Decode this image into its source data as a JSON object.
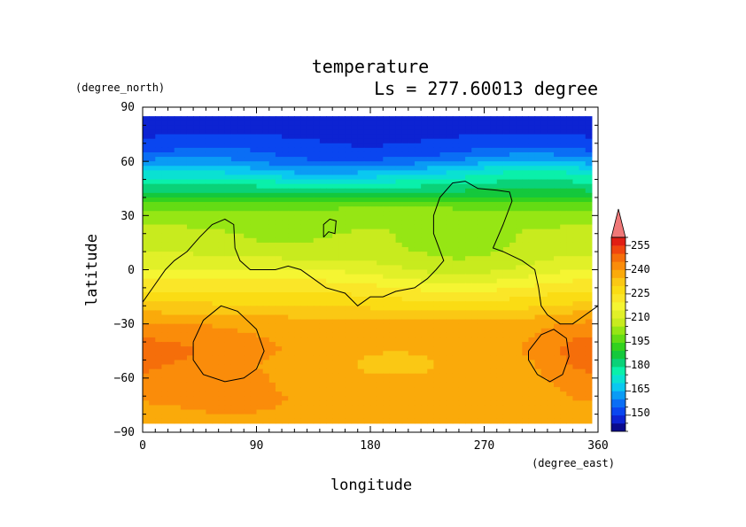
{
  "chart_data": {
    "type": "heatmap",
    "title": "temperature",
    "subtitle": "Ls = 277.60013 degree",
    "xlabel": "longitude",
    "ylabel": "latitude",
    "x_units": "(degree_east)",
    "y_units": "(degree_north)",
    "xlim": [
      0,
      360
    ],
    "ylim": [
      -90,
      90
    ],
    "x_ticks": [
      "0",
      "90",
      "180",
      "270",
      "360"
    ],
    "y_ticks": [
      "90",
      "60",
      "30",
      "0",
      "−30",
      "−60",
      "−90"
    ],
    "colorbar": {
      "levels": [
        140,
        145,
        150,
        155,
        160,
        165,
        170,
        175,
        180,
        185,
        190,
        195,
        200,
        205,
        210,
        215,
        220,
        225,
        230,
        235,
        240,
        245,
        250,
        255,
        260
      ],
      "colors": [
        "#0a0a8c",
        "#0d23d2",
        "#0a46f0",
        "#0a6ef5",
        "#0a9bf5",
        "#0ac8f0",
        "#0ae1d2",
        "#0af0aa",
        "#0ad278",
        "#14c83c",
        "#32d21e",
        "#64dc14",
        "#96e614",
        "#c8eb1e",
        "#e1f028",
        "#f5f532",
        "#fae628",
        "#fadc14",
        "#fac814",
        "#faaa0a",
        "#fa8c0a",
        "#f56e0a",
        "#f0460f",
        "#e11e14"
      ],
      "labels": [
        "255",
        "240",
        "225",
        "210",
        "195",
        "180",
        "165",
        "150"
      ],
      "over_color": "#f07878"
    },
    "profile_lat": [
      85,
      75,
      65,
      60,
      55,
      50,
      45,
      40,
      35,
      30,
      25,
      20,
      15,
      10,
      5,
      0,
      -5,
      -10,
      -15,
      -20,
      -25,
      -30,
      -35,
      -40,
      -45,
      -50,
      -55,
      -60,
      -65,
      -70,
      -75,
      -80,
      -85
    ],
    "profile_temp": [
      147,
      149,
      154,
      160,
      168,
      175,
      182,
      190,
      197,
      202,
      205,
      207,
      208,
      210,
      213,
      216,
      220,
      224,
      227,
      230,
      234,
      237,
      238,
      239,
      239,
      238,
      237,
      237,
      236,
      236,
      236,
      236,
      236
    ],
    "anomalies": [
      {
        "lon": 40,
        "lat": -50,
        "dlon": 55,
        "dlat": 22,
        "dT": 6
      },
      {
        "lon": 80,
        "lat": -72,
        "dlon": 60,
        "dlat": 12,
        "dT": 5
      },
      {
        "lon": 345,
        "lat": -50,
        "dlon": 35,
        "dlat": 25,
        "dT": 6
      },
      {
        "lon": 250,
        "lat": 0,
        "dlon": 70,
        "dlat": 20,
        "dT": -8
      },
      {
        "lon": 200,
        "lat": -48,
        "dlon": 55,
        "dlat": 12,
        "dT": -4
      },
      {
        "lon": 110,
        "lat": 15,
        "dlon": 60,
        "dlat": 15,
        "dT": -3
      },
      {
        "lon": 120,
        "lat": 55,
        "dlon": 60,
        "dlat": 8,
        "dT": -5
      },
      {
        "lon": 315,
        "lat": 55,
        "dlon": 45,
        "dlat": 10,
        "dT": 5
      },
      {
        "lon": 200,
        "lat": 35,
        "dlon": 60,
        "dlat": 8,
        "dT": 4
      }
    ],
    "contours": [
      [
        [
          0,
          -18
        ],
        [
          8,
          -10
        ],
        [
          18,
          0
        ],
        [
          25,
          5
        ],
        [
          35,
          10
        ],
        [
          45,
          18
        ],
        [
          55,
          25
        ],
        [
          65,
          28
        ],
        [
          72,
          25
        ],
        [
          73,
          12
        ],
        [
          77,
          5
        ],
        [
          85,
          0
        ],
        [
          95,
          0
        ],
        [
          105,
          0
        ],
        [
          115,
          2
        ],
        [
          125,
          0
        ],
        [
          135,
          -5
        ],
        [
          145,
          -10
        ],
        [
          160,
          -13
        ],
        [
          170,
          -20
        ],
        [
          180,
          -15
        ],
        [
          190,
          -15
        ],
        [
          200,
          -12
        ],
        [
          215,
          -10
        ],
        [
          225,
          -5
        ],
        [
          232,
          0
        ],
        [
          238,
          5
        ],
        [
          230,
          20
        ],
        [
          230,
          30
        ],
        [
          235,
          40
        ],
        [
          245,
          48
        ],
        [
          255,
          49
        ],
        [
          265,
          45
        ],
        [
          280,
          44
        ],
        [
          290,
          43
        ],
        [
          292,
          38
        ],
        [
          285,
          25
        ],
        [
          277,
          12
        ],
        [
          285,
          10
        ],
        [
          300,
          5
        ],
        [
          310,
          0
        ],
        [
          313,
          -10
        ],
        [
          315,
          -20
        ],
        [
          320,
          -25
        ],
        [
          330,
          -30
        ],
        [
          340,
          -30
        ],
        [
          350,
          -25
        ],
        [
          360,
          -20
        ]
      ],
      [
        [
          143,
          18
        ],
        [
          147,
          21
        ],
        [
          152,
          20
        ],
        [
          153,
          27
        ],
        [
          148,
          28
        ],
        [
          143,
          25
        ],
        [
          143,
          18
        ]
      ],
      [
        [
          40,
          -40
        ],
        [
          48,
          -28
        ],
        [
          62,
          -20
        ],
        [
          75,
          -23
        ],
        [
          90,
          -33
        ],
        [
          96,
          -45
        ],
        [
          90,
          -55
        ],
        [
          80,
          -60
        ],
        [
          65,
          -62
        ],
        [
          48,
          -58
        ],
        [
          40,
          -50
        ],
        [
          40,
          -40
        ]
      ],
      [
        [
          305,
          -45
        ],
        [
          315,
          -36
        ],
        [
          325,
          -33
        ],
        [
          335,
          -38
        ],
        [
          337,
          -48
        ],
        [
          332,
          -58
        ],
        [
          322,
          -62
        ],
        [
          312,
          -58
        ],
        [
          305,
          -50
        ],
        [
          305,
          -45
        ]
      ]
    ]
  }
}
